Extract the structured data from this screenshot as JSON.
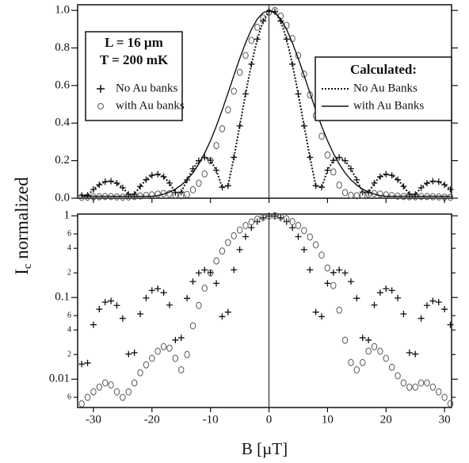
{
  "chart_data": [
    {
      "type": "line",
      "ylabel": [
        "I",
        "c",
        " normalized"
      ],
      "annotations": [
        "L = 16 µm",
        "T = 200 mK"
      ],
      "legend_title": "Calculated:",
      "xlim": [
        -32.7,
        31.2
      ],
      "ylim": [
        0,
        1.03
      ],
      "yticks": [
        {
          "value": 0,
          "label": "0.0"
        },
        0.2,
        0.4,
        0.6,
        0.8,
        {
          "value": 1,
          "label": "1.0"
        }
      ],
      "x": [
        -32,
        -31,
        -30,
        -29,
        -28,
        -27,
        -26,
        -25,
        -24,
        -23,
        -22,
        -21,
        -20,
        -19,
        -18,
        -17,
        -16,
        -15,
        -14,
        -13,
        -12,
        -11,
        -10,
        -9,
        -8,
        -7,
        -6,
        -5,
        -4,
        -3,
        -2,
        -1,
        0,
        1,
        2,
        3,
        4,
        5,
        6,
        7,
        8,
        9,
        10,
        11,
        12,
        13,
        14,
        15,
        16,
        17,
        18,
        19,
        20,
        21,
        22,
        23,
        24,
        25,
        26,
        27,
        28,
        29,
        30,
        31
      ],
      "series": [
        {
          "name": "No Au banks",
          "color": "#111111",
          "marker": "+",
          "values": [
            0.0153,
            0.0158,
            0.0464,
            0.0718,
            0.0876,
            0.0908,
            0.0799,
            0.0555,
            0.0203,
            0.0211,
            0.0629,
            0.0985,
            0.1218,
            0.1281,
            0.1145,
            0.0808,
            0.0301,
            0.0321,
            0.0976,
            0.1568,
            0.1998,
            0.2172,
            0.2017,
            0.1489,
            0.0584,
            0.0662,
            0.2177,
            0.385,
            0.555,
            0.7136,
            0.8469,
            0.9432,
            0.9936,
            0.9936,
            0.9432,
            0.8469,
            0.7136,
            0.555,
            0.385,
            0.2177,
            0.0662,
            0.0584,
            0.1489,
            0.2017,
            0.2172,
            0.1998,
            0.1568,
            0.0976,
            0.0321,
            0.0301,
            0.0808,
            0.1145,
            0.1281,
            0.1218,
            0.0985,
            0.0629,
            0.0211,
            0.0203,
            0.0555,
            0.0799,
            0.0908,
            0.0876,
            0.0718,
            0.0464
          ]
        },
        {
          "name": "with Au banks",
          "color": "#555555",
          "marker": "o",
          "values": [
            0.005,
            0.006,
            0.007,
            0.008,
            0.009,
            0.0085,
            0.007,
            0.006,
            0.007,
            0.009,
            0.012,
            0.015,
            0.018,
            0.022,
            0.025,
            0.024,
            0.018,
            0.013,
            0.02,
            0.045,
            0.08,
            0.13,
            0.2,
            0.28,
            0.37,
            0.47,
            0.57,
            0.67,
            0.76,
            0.84,
            0.91,
            0.96,
            0.99,
            1.0,
            0.97,
            0.92,
            0.85,
            0.76,
            0.66,
            0.55,
            0.44,
            0.33,
            0.23,
            0.14,
            0.07,
            0.03,
            0.016,
            0.013,
            0.016,
            0.022,
            0.025,
            0.022,
            0.018,
            0.014,
            0.011,
            0.009,
            0.008,
            0.008,
            0.009,
            0.009,
            0.008,
            0.007,
            0.006,
            0.005
          ]
        },
        {
          "name": "No Au Banks",
          "color": "#111111",
          "dash": "dotted",
          "values": [
            0.0153,
            0.0158,
            0.0464,
            0.0718,
            0.0876,
            0.0908,
            0.0799,
            0.0555,
            0.0203,
            0.0211,
            0.0629,
            0.0985,
            0.1218,
            0.1281,
            0.1145,
            0.0808,
            0.0301,
            0.0321,
            0.0976,
            0.1568,
            0.1998,
            0.2172,
            0.2017,
            0.1489,
            0.0584,
            0.0662,
            0.2177,
            0.385,
            0.555,
            0.7136,
            0.8469,
            0.9432,
            0.9936,
            0.9936,
            0.9432,
            0.8469,
            0.7136,
            0.555,
            0.385,
            0.2177,
            0.0662,
            0.0584,
            0.1489,
            0.2017,
            0.2172,
            0.1998,
            0.1568,
            0.0976,
            0.0321,
            0.0301,
            0.0808,
            0.1145,
            0.1281,
            0.1218,
            0.0985,
            0.0629,
            0.0211,
            0.0203,
            0.0555,
            0.0799,
            0.0908,
            0.0876,
            0.0718,
            0.0464
          ]
        },
        {
          "name": "with Au Banks",
          "color": "#111111",
          "dash": "solid",
          "values": [
            0.01,
            0.01,
            0.01,
            0.01,
            0.01,
            0.01,
            0.01,
            0.01,
            0.01,
            0.01,
            0.01,
            0.01,
            0.01,
            0.014,
            0.022,
            0.033,
            0.048,
            0.07,
            0.098,
            0.135,
            0.182,
            0.239,
            0.306,
            0.383,
            0.469,
            0.56,
            0.653,
            0.744,
            0.827,
            0.899,
            0.954,
            0.988,
            1,
            0.988,
            0.954,
            0.899,
            0.827,
            0.744,
            0.653,
            0.56,
            0.469,
            0.383,
            0.306,
            0.239,
            0.182,
            0.135,
            0.098,
            0.07,
            0.048,
            0.033,
            0.022,
            0.014,
            0.01,
            0.01,
            0.01,
            0.01,
            0.01,
            0.01,
            0.01,
            0.01,
            0.01,
            0.01,
            0.01,
            0.01
          ]
        }
      ]
    },
    {
      "type": "line",
      "log_y": true,
      "xlabel": "B [µT]",
      "xlim": [
        -32.7,
        31.2
      ],
      "ylim": [
        0.0045,
        1.05
      ],
      "xticks": [
        -30,
        -20,
        -10,
        0,
        10,
        20,
        30
      ],
      "yticks": [
        {
          "value": 0.006,
          "label": "6"
        },
        {
          "value": 0.01,
          "label": "0.01"
        },
        {
          "value": 0.02,
          "label": "2"
        },
        {
          "value": 0.04,
          "label": "4"
        },
        {
          "value": 0.06,
          "label": "6"
        },
        0.1,
        {
          "value": 0.2,
          "label": "2"
        },
        {
          "value": 0.4,
          "label": "4"
        },
        {
          "value": 0.6,
          "label": "6"
        },
        1
      ],
      "x": [
        -32,
        -31,
        -30,
        -29,
        -28,
        -27,
        -26,
        -25,
        -24,
        -23,
        -22,
        -21,
        -20,
        -19,
        -18,
        -17,
        -16,
        -15,
        -14,
        -13,
        -12,
        -11,
        -10,
        -9,
        -8,
        -7,
        -6,
        -5,
        -4,
        -3,
        -2,
        -1,
        0,
        1,
        2,
        3,
        4,
        5,
        6,
        7,
        8,
        9,
        10,
        11,
        12,
        13,
        14,
        15,
        16,
        17,
        18,
        19,
        20,
        21,
        22,
        23,
        24,
        25,
        26,
        27,
        28,
        29,
        30,
        31
      ],
      "series": [
        {
          "color": "#111111",
          "marker": "+",
          "values": [
            0.0153,
            0.0158,
            0.0464,
            0.0718,
            0.0876,
            0.0908,
            0.0799,
            0.0555,
            0.0203,
            0.0211,
            0.0629,
            0.0985,
            0.1218,
            0.1281,
            0.1145,
            0.0808,
            0.0301,
            0.0321,
            0.0976,
            0.1568,
            0.1998,
            0.2172,
            0.2017,
            0.1489,
            0.0584,
            0.0662,
            0.2177,
            0.385,
            0.555,
            0.7136,
            0.8469,
            0.9432,
            0.9936,
            0.9936,
            0.9432,
            0.8469,
            0.7136,
            0.555,
            0.385,
            0.2177,
            0.0662,
            0.0584,
            0.1489,
            0.2017,
            0.2172,
            0.1998,
            0.1568,
            0.0976,
            0.0321,
            0.0301,
            0.0808,
            0.1145,
            0.1281,
            0.1218,
            0.0985,
            0.0629,
            0.0211,
            0.0203,
            0.0555,
            0.0799,
            0.0908,
            0.0876,
            0.0718,
            0.0464
          ]
        },
        {
          "color": "#555555",
          "marker": "o",
          "values": [
            0.005,
            0.006,
            0.007,
            0.008,
            0.009,
            0.0085,
            0.007,
            0.006,
            0.007,
            0.009,
            0.012,
            0.015,
            0.018,
            0.022,
            0.025,
            0.024,
            0.018,
            0.013,
            0.02,
            0.045,
            0.08,
            0.13,
            0.2,
            0.28,
            0.37,
            0.47,
            0.57,
            0.67,
            0.76,
            0.84,
            0.91,
            0.96,
            0.99,
            1.0,
            0.97,
            0.92,
            0.85,
            0.76,
            0.66,
            0.55,
            0.44,
            0.33,
            0.23,
            0.14,
            0.07,
            0.03,
            0.016,
            0.013,
            0.016,
            0.022,
            0.025,
            0.022,
            0.018,
            0.014,
            0.011,
            0.009,
            0.008,
            0.008,
            0.009,
            0.009,
            0.008,
            0.007,
            0.006,
            0.005
          ]
        }
      ]
    }
  ]
}
